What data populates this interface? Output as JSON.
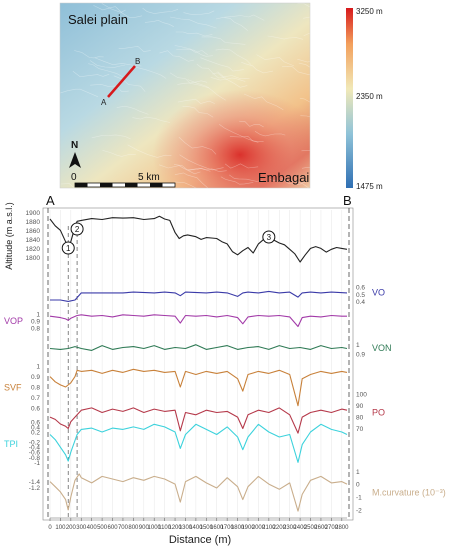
{
  "map": {
    "place_top_left": "Salei plain",
    "place_bottom_right": "Embagai",
    "profile_start": "A",
    "profile_end": "B",
    "north_label": "N",
    "scale_start": "0",
    "scale_end": "5 km",
    "legend": {
      "max": "3250 m",
      "mid": "2350 m",
      "min": "1475 m",
      "colors": [
        "#2f6fb3",
        "#8fc3d8",
        "#f1e9b8",
        "#f3a05c",
        "#d7191c"
      ]
    }
  },
  "chart_data": {
    "type": "line",
    "xlabel": "Distance (m)",
    "xlim": [
      0,
      2850
    ],
    "xticks": [
      0,
      100,
      200,
      300,
      400,
      500,
      600,
      700,
      800,
      900,
      1000,
      1100,
      1200,
      1300,
      1400,
      1500,
      1600,
      1700,
      1800,
      1900,
      2000,
      2100,
      2200,
      2300,
      2400,
      2500,
      2600,
      2700,
      2800
    ],
    "end_labels": [
      "A",
      "B"
    ],
    "markers": [
      {
        "label": "1",
        "x": 175
      },
      {
        "label": "2",
        "x": 260
      },
      {
        "label": "3",
        "x": 2100
      }
    ],
    "dashed_lines_x": [
      175,
      260
    ],
    "series": [
      {
        "name": "Altitude",
        "axis_label": "Altitude (m a.s.l.)",
        "color": "#222222",
        "ylim": [
          1790,
          1905
        ],
        "ticks": [
          1800,
          1820,
          1840,
          1860,
          1880,
          1900
        ],
        "tick_side": "left",
        "x": [
          0,
          50,
          100,
          150,
          175,
          200,
          240,
          260,
          300,
          400,
          500,
          600,
          700,
          800,
          900,
          1000,
          1050,
          1100,
          1150,
          1200,
          1240,
          1280,
          1320,
          1400,
          1450,
          1500,
          1550,
          1600,
          1650,
          1700,
          1750,
          1800,
          1850,
          1900,
          1950,
          2000,
          2050,
          2100,
          2150,
          2200,
          2250,
          2300,
          2350,
          2400,
          2450,
          2500,
          2550,
          2600,
          2650,
          2700,
          2750,
          2800,
          2850
        ],
        "y": [
          1885,
          1870,
          1860,
          1835,
          1828,
          1835,
          1868,
          1880,
          1882,
          1886,
          1884,
          1888,
          1887,
          1888,
          1884,
          1886,
          1891,
          1885,
          1882,
          1855,
          1842,
          1848,
          1850,
          1846,
          1840,
          1844,
          1843,
          1842,
          1835,
          1830,
          1813,
          1806,
          1815,
          1822,
          1810,
          1830,
          1840,
          1846,
          1838,
          1832,
          1828,
          1818,
          1808,
          1790,
          1806,
          1820,
          1824,
          1820,
          1812,
          1818,
          1822,
          1820,
          1818
        ]
      },
      {
        "name": "VO",
        "color": "#3a3aa8",
        "ylim": [
          0.35,
          0.7
        ],
        "ticks": [
          0.4,
          0.5,
          0.6
        ],
        "tick_side": "right",
        "x": [
          0,
          100,
          175,
          240,
          300,
          500,
          700,
          800,
          1000,
          1100,
          1200,
          1250,
          1300,
          1500,
          1600,
          1700,
          1800,
          1850,
          1900,
          2000,
          2100,
          2200,
          2300,
          2380,
          2420,
          2500,
          2600,
          2700,
          2850
        ],
        "y": [
          0.42,
          0.42,
          0.4,
          0.42,
          0.52,
          0.52,
          0.52,
          0.53,
          0.52,
          0.53,
          0.52,
          0.48,
          0.53,
          0.52,
          0.53,
          0.52,
          0.47,
          0.52,
          0.53,
          0.52,
          0.54,
          0.52,
          0.53,
          0.46,
          0.52,
          0.53,
          0.52,
          0.53,
          0.52
        ]
      },
      {
        "name": "VOP",
        "color": "#a23aa8",
        "ylim": [
          0.74,
          1.06
        ],
        "ticks": [
          0.8,
          0.9,
          1.0
        ],
        "tick_side": "left",
        "x": [
          0,
          100,
          150,
          175,
          200,
          260,
          300,
          400,
          500,
          600,
          700,
          800,
          900,
          1000,
          1100,
          1200,
          1250,
          1300,
          1400,
          1500,
          1600,
          1700,
          1800,
          1850,
          1900,
          2000,
          2100,
          2200,
          2300,
          2380,
          2420,
          2500,
          2600,
          2700,
          2800,
          2850
        ],
        "y": [
          0.97,
          0.95,
          0.93,
          0.91,
          0.94,
          0.98,
          0.99,
          0.97,
          0.98,
          0.96,
          0.99,
          0.98,
          0.97,
          0.99,
          0.98,
          0.97,
          0.87,
          0.98,
          0.97,
          0.98,
          0.96,
          0.98,
          0.95,
          0.86,
          0.96,
          0.98,
          0.97,
          0.98,
          0.96,
          0.82,
          0.95,
          0.97,
          0.96,
          0.98,
          0.97,
          0.97
        ]
      },
      {
        "name": "VON",
        "color": "#2f7a55",
        "ylim": [
          0.86,
          1.07
        ],
        "ticks": [
          0.9,
          1.0
        ],
        "tick_side": "right",
        "x": [
          0,
          100,
          175,
          240,
          300,
          400,
          500,
          600,
          700,
          800,
          900,
          1000,
          1100,
          1200,
          1300,
          1400,
          1500,
          1600,
          1700,
          1800,
          1900,
          2000,
          2100,
          2200,
          2300,
          2400,
          2500,
          2600,
          2700,
          2800,
          2850
        ],
        "y": [
          0.96,
          0.95,
          0.96,
          0.98,
          0.96,
          0.94,
          0.99,
          0.95,
          0.97,
          0.98,
          0.96,
          0.99,
          0.95,
          0.97,
          0.96,
          1.0,
          0.95,
          0.97,
          0.99,
          0.95,
          0.97,
          0.98,
          0.95,
          0.99,
          0.96,
          0.97,
          0.95,
          0.99,
          0.96,
          0.97,
          0.96
        ]
      },
      {
        "name": "SVF",
        "color": "#c8813a",
        "ylim": [
          0.55,
          1.04
        ],
        "ticks": [
          0.6,
          0.7,
          0.8,
          0.9,
          1.0
        ],
        "tick_side": "left",
        "x": [
          0,
          50,
          100,
          150,
          200,
          240,
          260,
          300,
          400,
          500,
          600,
          700,
          800,
          900,
          1000,
          1100,
          1200,
          1250,
          1300,
          1400,
          1500,
          1600,
          1700,
          1800,
          1850,
          1900,
          2000,
          2100,
          2200,
          2300,
          2380,
          2420,
          2500,
          2600,
          2700,
          2800,
          2850
        ],
        "y": [
          0.9,
          0.85,
          0.82,
          0.8,
          0.84,
          0.9,
          0.96,
          0.95,
          0.96,
          0.93,
          0.96,
          0.94,
          0.97,
          0.95,
          0.96,
          0.94,
          0.95,
          0.8,
          0.95,
          0.92,
          0.95,
          0.93,
          0.95,
          0.88,
          0.76,
          0.92,
          0.95,
          0.93,
          0.96,
          0.92,
          0.62,
          0.88,
          0.92,
          0.95,
          0.93,
          0.95,
          0.94
        ]
      },
      {
        "name": "PO",
        "color": "#b5394a",
        "ylim": [
          60,
          108
        ],
        "ticks": [
          70,
          80,
          90,
          100
        ],
        "tick_side": "right",
        "x": [
          0,
          50,
          100,
          150,
          175,
          200,
          260,
          300,
          400,
          500,
          600,
          700,
          800,
          900,
          1000,
          1100,
          1200,
          1250,
          1300,
          1400,
          1500,
          1600,
          1700,
          1800,
          1850,
          1900,
          2000,
          2100,
          2200,
          2300,
          2380,
          2420,
          2500,
          2600,
          2700,
          2800,
          2850
        ],
        "y": [
          80,
          78,
          74,
          72,
          70,
          76,
          82,
          86,
          88,
          84,
          87,
          85,
          88,
          84,
          87,
          85,
          86,
          68,
          84,
          82,
          86,
          84,
          85,
          80,
          70,
          82,
          86,
          84,
          88,
          82,
          66,
          80,
          84,
          86,
          84,
          87,
          86
        ]
      },
      {
        "name": "TPI",
        "color": "#3cd2dc",
        "ylim": [
          -1.3,
          0.75
        ],
        "ticks": [
          -1.0,
          -0.8,
          -0.6,
          -0.4,
          -0.2,
          0.2,
          0.4,
          0.6
        ],
        "tick_side": "left",
        "x": [
          0,
          50,
          100,
          150,
          175,
          200,
          260,
          300,
          400,
          500,
          600,
          700,
          800,
          900,
          1000,
          1100,
          1200,
          1250,
          1300,
          1400,
          1500,
          1600,
          1700,
          1800,
          1850,
          1900,
          2000,
          2100,
          2200,
          2300,
          2380,
          2420,
          2500,
          2600,
          2700,
          2800,
          2850
        ],
        "y": [
          0.1,
          -0.1,
          -0.4,
          -0.7,
          -0.95,
          -0.6,
          0.1,
          0.3,
          0.35,
          0.2,
          0.35,
          0.3,
          0.4,
          0.3,
          0.5,
          0.4,
          0.2,
          -0.45,
          0.1,
          0.5,
          0.3,
          0.1,
          0.4,
          0.0,
          -0.5,
          0.0,
          0.5,
          0.2,
          0.0,
          0.1,
          -1.0,
          -0.3,
          0.2,
          0.5,
          0.3,
          0.2,
          0.1
        ]
      },
      {
        "name": "M.curvature (10⁻³)",
        "axis_label": "M.curvature (10⁻³)",
        "color": "#c9ae8c",
        "ylim": [
          -2.4,
          1.1
        ],
        "ticks": [
          -2,
          -1,
          0,
          1
        ],
        "tick_side": "right",
        "x": [
          0,
          50,
          100,
          150,
          175,
          200,
          240,
          280,
          300,
          400,
          500,
          600,
          700,
          800,
          900,
          1000,
          1100,
          1200,
          1250,
          1300,
          1400,
          1500,
          1600,
          1700,
          1800,
          1850,
          1900,
          2000,
          2100,
          2200,
          2300,
          2380,
          2420,
          2500,
          2600,
          2700,
          2800,
          2850
        ],
        "y": [
          0.2,
          -0.2,
          -0.6,
          -1.2,
          -2.0,
          -1.0,
          0.3,
          0.8,
          0.5,
          0.1,
          0.6,
          0.4,
          0.2,
          0.5,
          0.3,
          0.6,
          0.4,
          0.0,
          -1.4,
          0.2,
          0.6,
          0.1,
          -0.3,
          0.5,
          -0.2,
          -1.2,
          -0.2,
          0.6,
          0.0,
          -0.4,
          0.1,
          -2.1,
          -0.8,
          0.3,
          0.6,
          0.1,
          0.2,
          0.0
        ]
      }
    ],
    "extra_left_ticks": [
      {
        "after": "SVF",
        "labels": [
          "-1.4",
          "-1.2"
        ]
      }
    ]
  }
}
